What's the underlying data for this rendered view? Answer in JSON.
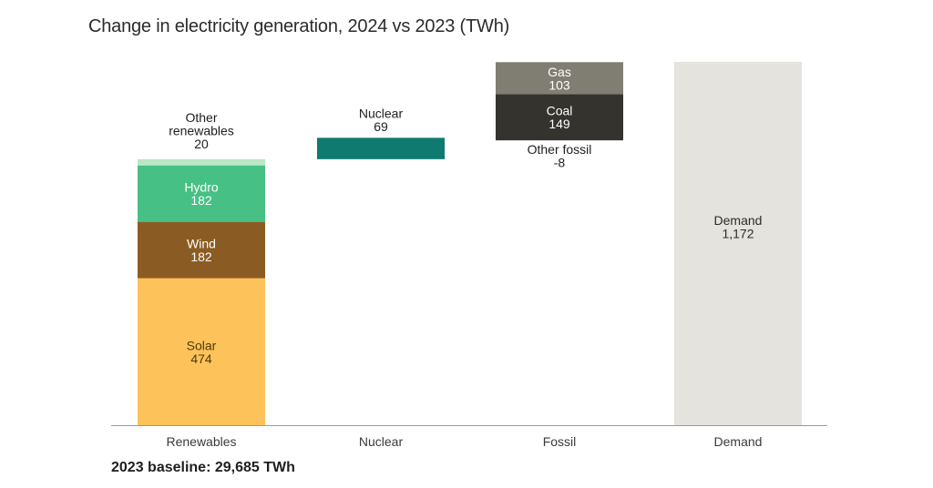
{
  "chart_data": {
    "type": "bar",
    "title": "Change in electricity generation, 2024 vs 2023 (TWh)",
    "note": "2023 baseline: 29,685 TWh",
    "categories": [
      "Renewables",
      "Nuclear",
      "Fossil",
      "Demand"
    ],
    "ylim": [
      0,
      1300
    ],
    "grid": false,
    "segments": [
      {
        "category": "Renewables",
        "name": "Solar",
        "value": 474,
        "color": "#fdc25a",
        "text_color": "#4d3a12"
      },
      {
        "category": "Renewables",
        "name": "Wind",
        "value": 182,
        "color": "#8a5c23",
        "text_color": "#ffffff"
      },
      {
        "category": "Renewables",
        "name": "Hydro",
        "value": 182,
        "color": "#47c085",
        "text_color": "#ffffff"
      },
      {
        "category": "Renewables",
        "name": "Other renewables",
        "value": 20,
        "color": "#b9e6c4",
        "text_color": "#1e1e1e"
      },
      {
        "category": "Nuclear",
        "name": "Nuclear",
        "value": 69,
        "color": "#0f7a6f",
        "text_color": "#1e1e1e"
      },
      {
        "category": "Fossil",
        "name": "Other fossil",
        "value": -8,
        "color": "#2e2e2a",
        "text_color": "#1e1e1e"
      },
      {
        "category": "Fossil",
        "name": "Coal",
        "value": 149,
        "color": "#34332d",
        "text_color": "#ffffff"
      },
      {
        "category": "Fossil",
        "name": "Gas",
        "value": 103,
        "color": "#807d72",
        "text_color": "#ffffff"
      },
      {
        "category": "Demand",
        "name": "Demand",
        "value": 1172,
        "color": "#e5e3dd",
        "text_color": "#2b2b2b"
      }
    ],
    "display_labels": {
      "Solar": [
        "Solar",
        "474"
      ],
      "Wind": [
        "Wind",
        "182"
      ],
      "Hydro": [
        "Hydro",
        "182"
      ],
      "Other renewables": [
        "Other",
        "renewables",
        "20"
      ],
      "Nuclear": [
        "Nuclear",
        "69"
      ],
      "Other fossil": [
        "Other fossil",
        "-8"
      ],
      "Coal": [
        "Coal",
        "149"
      ],
      "Gas": [
        "Gas",
        "103"
      ],
      "Demand": [
        "Demand",
        "1,172"
      ]
    }
  }
}
